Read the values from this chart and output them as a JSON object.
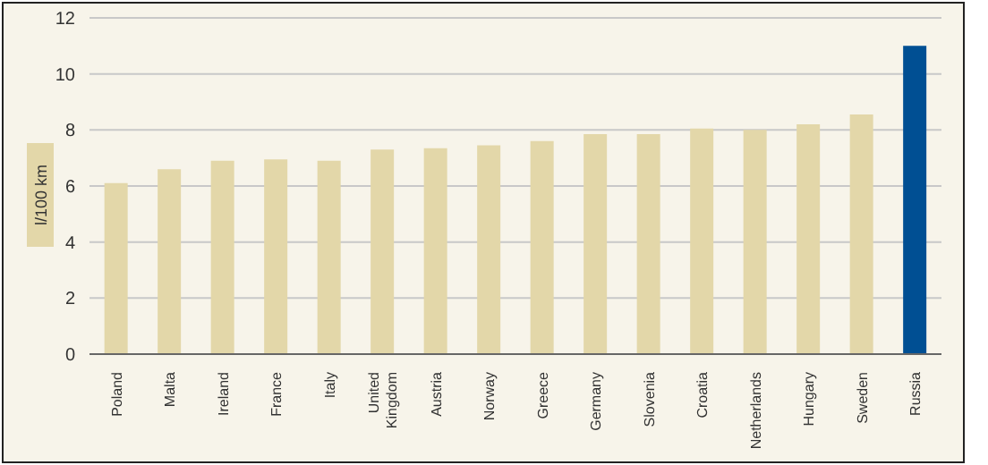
{
  "chart_data": {
    "type": "bar",
    "ylabel": "l/100 km",
    "categories": [
      "Poland",
      "Malta",
      "Ireland",
      "France",
      "Italy",
      "United Kingdom",
      "Austria",
      "Norway",
      "Greece",
      "Germany",
      "Slovenia",
      "Croatia",
      "Netherlands",
      "Hungary",
      "Sweden",
      "Russia"
    ],
    "values": [
      6.1,
      6.6,
      6.9,
      6.95,
      6.9,
      7.3,
      7.35,
      7.45,
      7.6,
      7.85,
      7.85,
      8.05,
      8.0,
      8.2,
      8.55,
      11.0
    ],
    "colors": [
      "#e3d7a9",
      "#e3d7a9",
      "#e3d7a9",
      "#e3d7a9",
      "#e3d7a9",
      "#e3d7a9",
      "#e3d7a9",
      "#e3d7a9",
      "#e3d7a9",
      "#e3d7a9",
      "#e3d7a9",
      "#e3d7a9",
      "#e3d7a9",
      "#e3d7a9",
      "#e3d7a9",
      "#004f93"
    ],
    "ylim": [
      0,
      12
    ],
    "yticks": [
      0,
      2,
      4,
      6,
      8,
      10,
      12
    ],
    "grid": "y"
  }
}
